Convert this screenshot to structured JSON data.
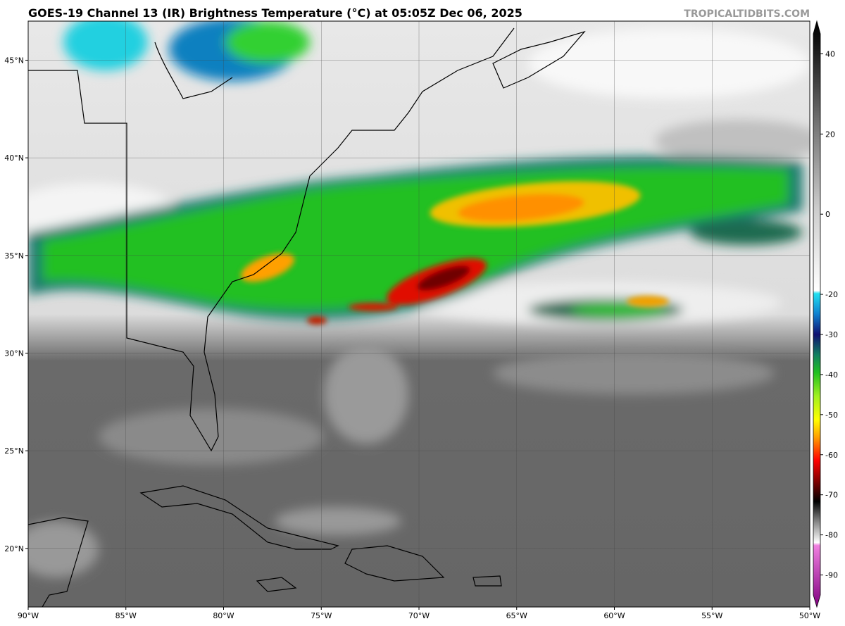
{
  "map": {
    "title": "GOES-19 Channel 13 (IR) Brightness Temperature (°C) at 05:05Z Dec 06, 2025",
    "credit": "TROPICALTIDBITS.COM",
    "xlim": [
      -90,
      -50
    ],
    "ylim": [
      17,
      47
    ],
    "xticks": [
      {
        "value": -90,
        "label": "90°W"
      },
      {
        "value": -85,
        "label": "85°W"
      },
      {
        "value": -80,
        "label": "80°W"
      },
      {
        "value": -75,
        "label": "75°W"
      },
      {
        "value": -70,
        "label": "70°W"
      },
      {
        "value": -65,
        "label": "65°W"
      },
      {
        "value": -60,
        "label": "60°W"
      },
      {
        "value": -55,
        "label": "55°W"
      },
      {
        "value": -50,
        "label": "50°W"
      }
    ],
    "yticks": [
      {
        "value": 20,
        "label": "20°N"
      },
      {
        "value": 25,
        "label": "25°N"
      },
      {
        "value": 30,
        "label": "30°N"
      },
      {
        "value": 35,
        "label": "35°N"
      },
      {
        "value": 40,
        "label": "40°N"
      },
      {
        "value": 45,
        "label": "45°N"
      }
    ]
  },
  "colorbar": {
    "lim": [
      -95,
      45
    ],
    "ticks": [
      40,
      20,
      0,
      -20,
      -30,
      -40,
      -50,
      -60,
      -70,
      -80,
      -90
    ]
  }
}
